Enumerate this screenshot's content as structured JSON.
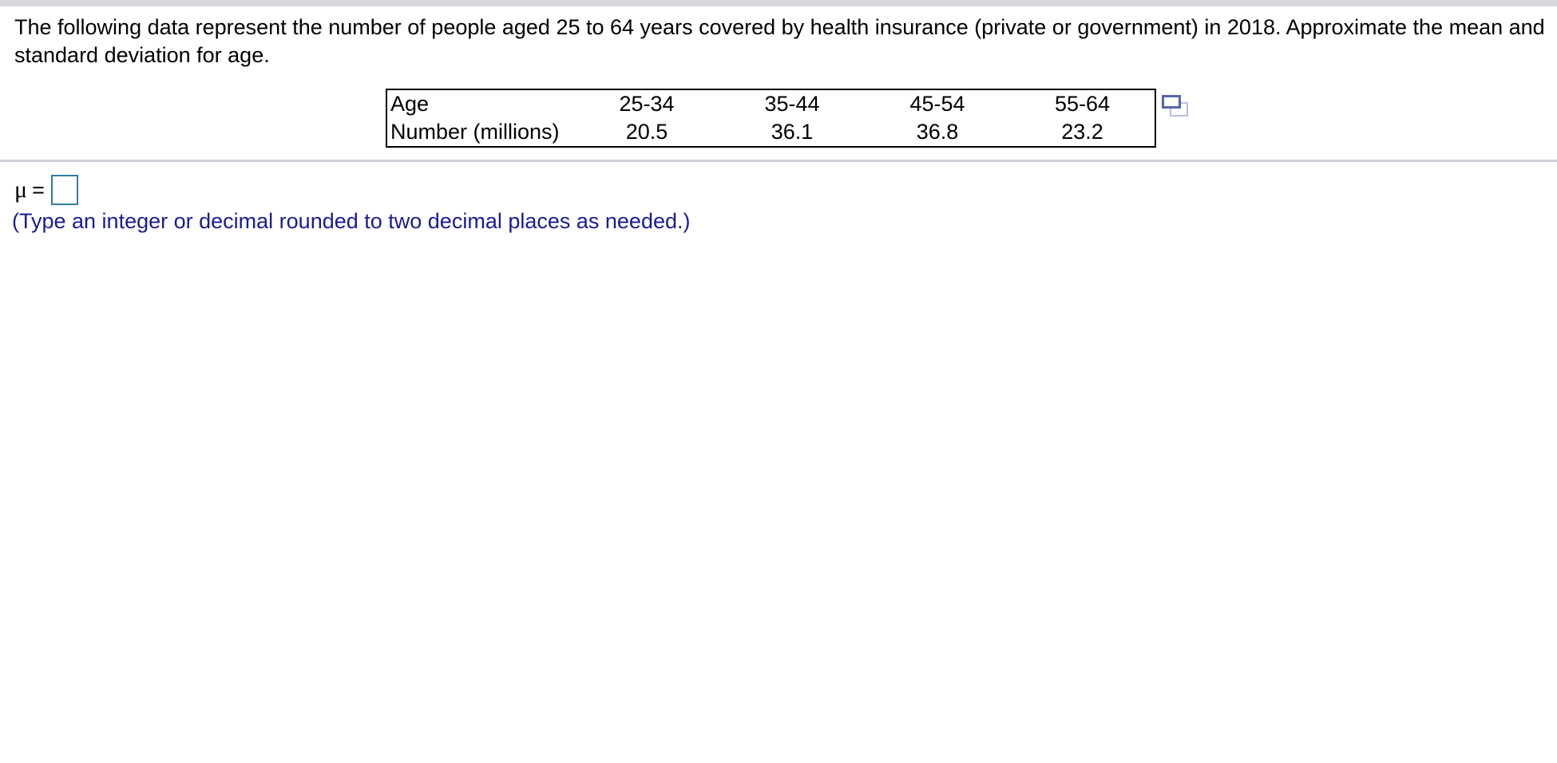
{
  "problem": {
    "line1": "The following data represent the number of people aged 25 to 64 years covered by health insurance (private or government) in 2018. Approximate the mean and",
    "line2": "standard deviation for age."
  },
  "table": {
    "rows": [
      {
        "label": "Age",
        "values": [
          "25-34",
          "35-44",
          "45-54",
          "55-64"
        ]
      },
      {
        "label": "Number (millions)",
        "values": [
          "20.5",
          "36.1",
          "36.8",
          "23.2"
        ]
      }
    ],
    "popout_icon": "popout-window-icon"
  },
  "answer": {
    "symbol": "μ",
    "equals": "=",
    "input_value": "",
    "instruction": "(Type an integer or decimal rounded to two decimal places as needed.)"
  },
  "colors": {
    "top_bar": "#D8D8DE",
    "divider": "#CCD0DA",
    "table_border": "#000000",
    "input_border": "#2E7E9E",
    "instruction_text": "#1B1B94",
    "icon_front": "#5A64AE",
    "icon_back": "#B7BDDE"
  }
}
